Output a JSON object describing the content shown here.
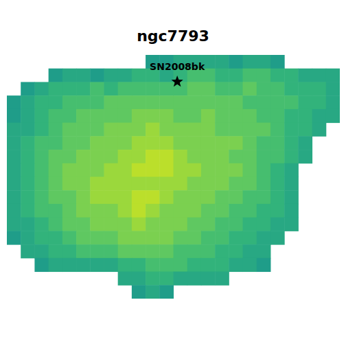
{
  "chart_data": {
    "type": "heatmap",
    "title": "ngc7793",
    "tick_labels": false,
    "xlim": [
      0,
      24
    ],
    "ylim": [
      0,
      18
    ],
    "zlim": [
      0,
      10
    ],
    "cells": [
      [
        null,
        null,
        null,
        null,
        null,
        null,
        null,
        null,
        null,
        null,
        2,
        2,
        3,
        3,
        3,
        3,
        2,
        3,
        3,
        2,
        null,
        null,
        null,
        null
      ],
      [
        null,
        null,
        null,
        2,
        3,
        3,
        2,
        3,
        3,
        4,
        4,
        3,
        4,
        5,
        5,
        4,
        4,
        5,
        5,
        4,
        4,
        3,
        3,
        3
      ],
      [
        null,
        2,
        3,
        4,
        4,
        4,
        5,
        4,
        5,
        5,
        5,
        5,
        5,
        6,
        6,
        5,
        5,
        6,
        5,
        5,
        4,
        4,
        4,
        3
      ],
      [
        2,
        3,
        4,
        4,
        5,
        5,
        5,
        6,
        6,
        6,
        6,
        6,
        6,
        6,
        6,
        6,
        6,
        5,
        5,
        5,
        5,
        4,
        4,
        3
      ],
      [
        2,
        3,
        4,
        5,
        5,
        6,
        6,
        6,
        6,
        7,
        7,
        7,
        6,
        6,
        7,
        6,
        6,
        6,
        5,
        5,
        4,
        4,
        3,
        3
      ],
      [
        3,
        3,
        4,
        5,
        6,
        6,
        6,
        7,
        7,
        7,
        8,
        7,
        7,
        7,
        7,
        6,
        6,
        6,
        6,
        5,
        4,
        4,
        3,
        null
      ],
      [
        3,
        4,
        5,
        5,
        6,
        6,
        7,
        7,
        7,
        8,
        8,
        8,
        7,
        7,
        7,
        7,
        7,
        6,
        5,
        5,
        4,
        3,
        null,
        null
      ],
      [
        3,
        4,
        5,
        6,
        6,
        7,
        7,
        7,
        8,
        8,
        9,
        9,
        8,
        7,
        7,
        7,
        6,
        6,
        5,
        5,
        4,
        3,
        null,
        null
      ],
      [
        3,
        4,
        5,
        6,
        7,
        7,
        7,
        8,
        8,
        9,
        9,
        9,
        8,
        8,
        7,
        7,
        7,
        6,
        5,
        4,
        3,
        null,
        null,
        null
      ],
      [
        3,
        4,
        5,
        6,
        7,
        7,
        8,
        8,
        8,
        8,
        8,
        8,
        8,
        7,
        7,
        7,
        6,
        6,
        5,
        4,
        3,
        null,
        null,
        null
      ],
      [
        3,
        4,
        5,
        6,
        6,
        7,
        8,
        8,
        8,
        9,
        9,
        8,
        7,
        7,
        7,
        6,
        6,
        5,
        5,
        4,
        3,
        null,
        null,
        null
      ],
      [
        3,
        4,
        5,
        5,
        6,
        7,
        7,
        7,
        8,
        9,
        8,
        7,
        7,
        7,
        6,
        6,
        5,
        5,
        4,
        4,
        3,
        null,
        null,
        null
      ],
      [
        3,
        3,
        4,
        5,
        6,
        6,
        7,
        7,
        7,
        8,
        7,
        7,
        7,
        6,
        6,
        5,
        5,
        4,
        4,
        3,
        3,
        null,
        null,
        null
      ],
      [
        2,
        3,
        4,
        4,
        5,
        6,
        6,
        6,
        7,
        7,
        7,
        7,
        6,
        6,
        5,
        5,
        4,
        4,
        3,
        3,
        null,
        null,
        null,
        null
      ],
      [
        null,
        3,
        3,
        4,
        4,
        5,
        5,
        5,
        6,
        6,
        6,
        6,
        5,
        5,
        5,
        4,
        4,
        3,
        3,
        null,
        null,
        null,
        null,
        null
      ],
      [
        null,
        null,
        2,
        3,
        3,
        3,
        3,
        3,
        4,
        4,
        5,
        5,
        5,
        4,
        4,
        4,
        3,
        3,
        2,
        null,
        null,
        null,
        null,
        null
      ],
      [
        null,
        null,
        null,
        null,
        null,
        null,
        null,
        null,
        3,
        3,
        4,
        4,
        3,
        3,
        3,
        3,
        null,
        null,
        null,
        null,
        null,
        null,
        null,
        null
      ],
      [
        null,
        null,
        null,
        null,
        null,
        null,
        null,
        null,
        null,
        2,
        3,
        2,
        null,
        null,
        null,
        null,
        null,
        null,
        null,
        null,
        null,
        null,
        null,
        null
      ]
    ],
    "annotations": [
      {
        "text": "SN2008bk",
        "x": 12.28,
        "y": 1.98,
        "marker": "star"
      }
    ]
  }
}
